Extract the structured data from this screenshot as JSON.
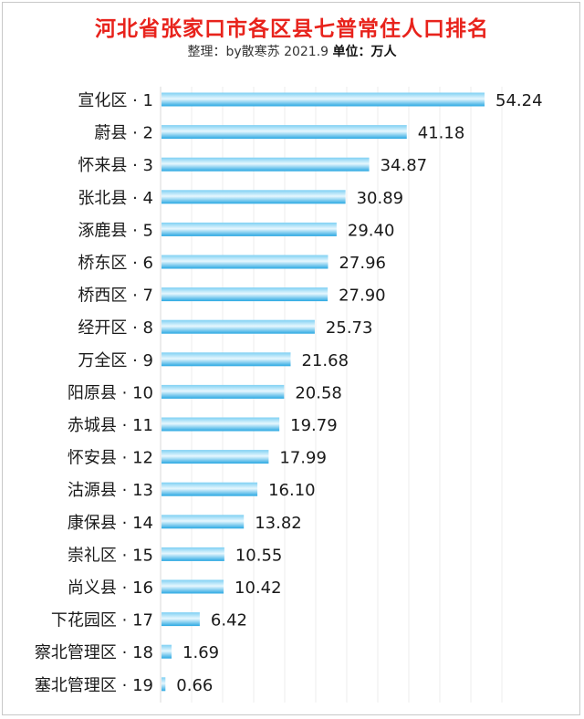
{
  "chart_data": {
    "type": "bar",
    "orientation": "horizontal",
    "title": "河北省张家口市各区县七普常住人口排名",
    "subtitle_credit": "整理：by散寒苏 2021.9",
    "subtitle_unit": "单位：万人",
    "categories": [
      "宣化区 · 1",
      "蔚县 · 2",
      "怀来县 · 3",
      "张北县 · 4",
      "涿鹿县 · 5",
      "桥东区 · 6",
      "桥西区 · 7",
      "经开区 · 8",
      "万全区 · 9",
      "阳原县 · 10",
      "赤城县 · 11",
      "怀安县 · 12",
      "沽源县 · 13",
      "康保县 · 14",
      "崇礼区 · 15",
      "尚义县 · 16",
      "下花园区 · 17",
      "察北管理区 · 18",
      "塞北管理区 · 19"
    ],
    "values": [
      54.24,
      41.18,
      34.87,
      30.89,
      29.4,
      27.96,
      27.9,
      25.73,
      21.68,
      20.58,
      19.79,
      17.99,
      16.1,
      13.82,
      10.55,
      10.42,
      6.42,
      1.69,
      0.66
    ],
    "value_labels": [
      "54.24",
      "41.18",
      "34.87",
      "30.89",
      "29.40",
      "27.96",
      "27.90",
      "25.73",
      "21.68",
      "20.58",
      "19.79",
      "17.99",
      "16.10",
      "13.82",
      "10.55",
      "10.42",
      "6.42",
      "1.69",
      "0.66"
    ],
    "xlim": [
      0,
      54.24
    ],
    "bar_color": "#35b2e8",
    "bar_highlight": "#dff4fd",
    "title_color": "#e8231c",
    "grid": true,
    "legend": "none"
  }
}
